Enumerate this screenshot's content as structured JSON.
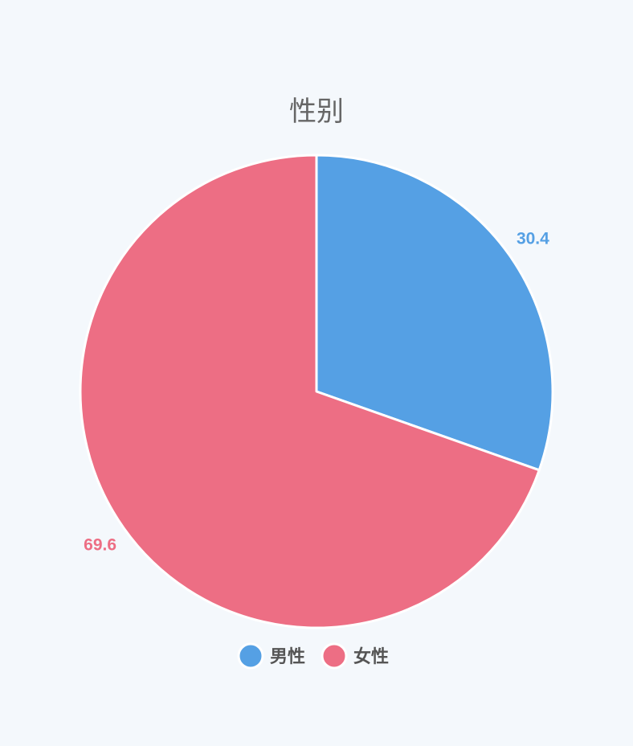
{
  "chart_data": {
    "type": "pie",
    "title": "性别",
    "categories": [
      "男性",
      "女性"
    ],
    "values": [
      30.4,
      69.6
    ],
    "colors": [
      "#55a0e4",
      "#ed6e84"
    ],
    "data_labels": [
      "30.4",
      "69.6"
    ],
    "start_angle": "12 o'clock",
    "direction": "clockwise",
    "legend": {
      "position": "bottom",
      "items": [
        "男性",
        "女性"
      ]
    }
  }
}
